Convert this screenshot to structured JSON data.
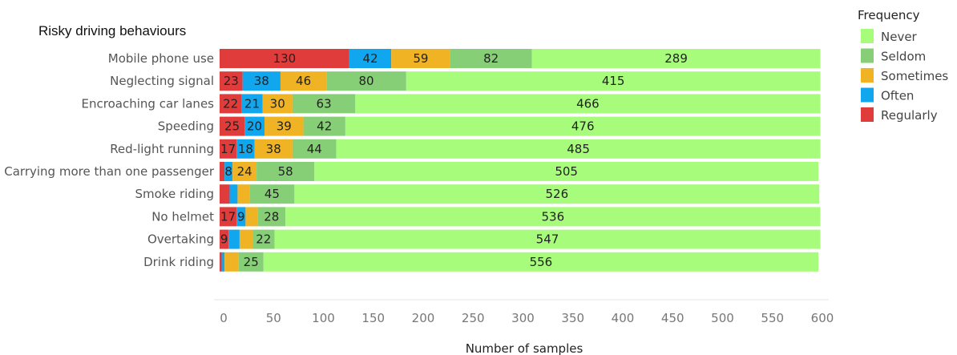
{
  "chart_data": {
    "type": "bar",
    "orientation": "horizontal",
    "stacked": true,
    "title": "Risky driving behaviours",
    "xlabel": "Number of samples",
    "ylabel": "",
    "xlim": [
      0,
      600
    ],
    "xticks": [
      0,
      50,
      100,
      150,
      200,
      250,
      300,
      350,
      400,
      450,
      500,
      550,
      600
    ],
    "grid": false,
    "legend": {
      "title": "Frequency",
      "placement": "right"
    },
    "categories": [
      "Mobile phone use",
      "Neglecting signal",
      "Encroaching car lanes",
      "Speeding",
      "Red-light running",
      "Carrying more than one passenger",
      "Smoke riding",
      "No helmet",
      "Overtaking",
      "Drink riding"
    ],
    "series": [
      {
        "name": "Regularly",
        "color": "#e03c3c",
        "values": [
          130,
          23,
          22,
          25,
          17,
          5,
          10,
          17,
          9,
          2
        ]
      },
      {
        "name": "Often",
        "color": "#10a7ee",
        "values": [
          42,
          38,
          21,
          20,
          18,
          8,
          8,
          9,
          11,
          3
        ]
      },
      {
        "name": "Sometimes",
        "color": "#f0b323",
        "values": [
          59,
          46,
          30,
          39,
          38,
          24,
          12,
          12,
          13,
          14
        ]
      },
      {
        "name": "Seldom",
        "color": "#87cf77",
        "values": [
          82,
          80,
          63,
          42,
          44,
          58,
          45,
          28,
          22,
          25
        ]
      },
      {
        "name": "Never",
        "color": "#a8fc7c",
        "values": [
          289,
          415,
          466,
          476,
          485,
          505,
          526,
          536,
          547,
          556
        ]
      }
    ],
    "data_labels": [
      [
        "130",
        "42",
        "59",
        "82",
        "289"
      ],
      [
        "23",
        "38",
        "46",
        "80",
        "415"
      ],
      [
        "22",
        "21",
        "30",
        "63",
        "466"
      ],
      [
        "25",
        "20",
        "39",
        "42",
        "476"
      ],
      [
        "17",
        "18",
        "38",
        "44",
        "485"
      ],
      [
        "",
        "8",
        "24",
        "58",
        "505"
      ],
      [
        "",
        "",
        "",
        "45",
        "526"
      ],
      [
        "17",
        "9",
        "",
        "28",
        "536"
      ],
      [
        "9",
        "",
        "",
        "22",
        "547"
      ],
      [
        "",
        "",
        "",
        "25",
        "556"
      ]
    ]
  }
}
